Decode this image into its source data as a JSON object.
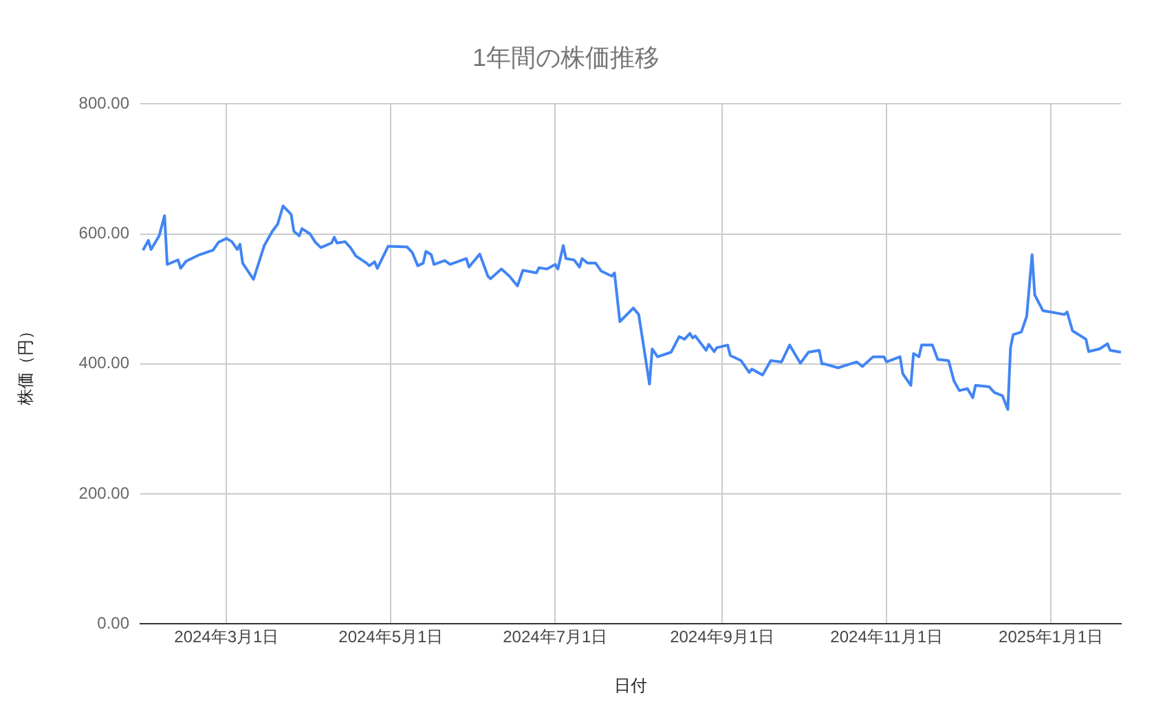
{
  "chart_data": {
    "type": "line",
    "title": "1年間の株価推移",
    "xlabel": "日付",
    "ylabel": "株価（円）",
    "x": [
      "2024-01-30",
      "2024-02-01",
      "2024-02-02",
      "2024-02-05",
      "2024-02-07",
      "2024-02-08",
      "2024-02-12",
      "2024-02-13",
      "2024-02-15",
      "2024-02-20",
      "2024-02-25",
      "2024-02-27",
      "2024-03-01",
      "2024-03-03",
      "2024-03-05",
      "2024-03-06",
      "2024-03-07",
      "2024-03-11",
      "2024-03-15",
      "2024-03-18",
      "2024-03-20",
      "2024-03-22",
      "2024-03-25",
      "2024-03-26",
      "2024-03-28",
      "2024-03-29",
      "2024-04-01",
      "2024-04-03",
      "2024-04-05",
      "2024-04-09",
      "2024-04-10",
      "2024-04-11",
      "2024-04-14",
      "2024-04-16",
      "2024-04-18",
      "2024-04-22",
      "2024-04-23",
      "2024-04-25",
      "2024-04-26",
      "2024-04-30",
      "2024-05-07",
      "2024-05-09",
      "2024-05-11",
      "2024-05-13",
      "2024-05-14",
      "2024-05-16",
      "2024-05-17",
      "2024-05-21",
      "2024-05-23",
      "2024-05-29",
      "2024-05-30",
      "2024-06-03",
      "2024-06-06",
      "2024-06-07",
      "2024-06-11",
      "2024-06-14",
      "2024-06-17",
      "2024-06-19",
      "2024-06-24",
      "2024-06-25",
      "2024-06-28",
      "2024-07-01",
      "2024-07-02",
      "2024-07-04",
      "2024-07-05",
      "2024-07-08",
      "2024-07-10",
      "2024-07-11",
      "2024-07-13",
      "2024-07-16",
      "2024-07-18",
      "2024-07-22",
      "2024-07-23",
      "2024-07-25",
      "2024-07-30",
      "2024-08-01",
      "2024-08-05",
      "2024-08-06",
      "2024-08-08",
      "2024-08-13",
      "2024-08-16",
      "2024-08-18",
      "2024-08-20",
      "2024-08-21",
      "2024-08-22",
      "2024-08-26",
      "2024-08-27",
      "2024-08-29",
      "2024-08-30",
      "2024-09-03",
      "2024-09-04",
      "2024-09-08",
      "2024-09-11",
      "2024-09-12",
      "2024-09-16",
      "2024-09-19",
      "2024-09-23",
      "2024-09-26",
      "2024-09-30",
      "2024-10-03",
      "2024-10-07",
      "2024-10-08",
      "2024-10-09",
      "2024-10-14",
      "2024-10-17",
      "2024-10-21",
      "2024-10-23",
      "2024-10-27",
      "2024-10-31",
      "2024-11-01",
      "2024-11-06",
      "2024-11-07",
      "2024-11-10",
      "2024-11-11",
      "2024-11-13",
      "2024-11-14",
      "2024-11-18",
      "2024-11-20",
      "2024-11-24",
      "2024-11-26",
      "2024-11-28",
      "2024-12-01",
      "2024-12-03",
      "2024-12-04",
      "2024-12-09",
      "2024-12-11",
      "2024-12-14",
      "2024-12-16",
      "2024-12-17",
      "2024-12-18",
      "2024-12-21",
      "2024-12-23",
      "2024-12-25",
      "2024-12-26",
      "2024-12-29",
      "2025-01-06",
      "2025-01-07",
      "2025-01-09",
      "2025-01-14",
      "2025-01-15",
      "2025-01-19",
      "2025-01-22",
      "2025-01-23",
      "2025-01-27"
    ],
    "series": [
      {
        "color": "#4285f4",
        "values": [
          575,
          590,
          576,
          597,
          628,
          553,
          560,
          547,
          558,
          568,
          575,
          587,
          593,
          588,
          576,
          584,
          555,
          530,
          582,
          604,
          615,
          643,
          630,
          604,
          597,
          608,
          600,
          587,
          579,
          586,
          595,
          586,
          588,
          579,
          566,
          555,
          551,
          557,
          547,
          581,
          580,
          571,
          551,
          555,
          573,
          568,
          553,
          559,
          553,
          562,
          549,
          569,
          535,
          531,
          546,
          535,
          520,
          544,
          540,
          548,
          546,
          553,
          546,
          582,
          562,
          560,
          549,
          562,
          555,
          555,
          543,
          535,
          540,
          465,
          486,
          476,
          369,
          423,
          411,
          418,
          442,
          438,
          447,
          440,
          443,
          421,
          430,
          419,
          425,
          429,
          413,
          405,
          387,
          392,
          383,
          405,
          403,
          429,
          401,
          418,
          421,
          400,
          400,
          394,
          398,
          403,
          396,
          411,
          411,
          403,
          411,
          385,
          367,
          416,
          411,
          429,
          429,
          407,
          405,
          374,
          359,
          362,
          348,
          367,
          365,
          356,
          351,
          330,
          425,
          445,
          449,
          473,
          568,
          506,
          482,
          476,
          480,
          451,
          438,
          419,
          423,
          431,
          421,
          418
        ]
      }
    ],
    "xlim": [
      "2024-01-29",
      "2025-01-27"
    ],
    "xticks": [
      {
        "value": "2024-03-01",
        "label": "2024年3月1日"
      },
      {
        "value": "2024-05-01",
        "label": "2024年5月1日"
      },
      {
        "value": "2024-07-01",
        "label": "2024年7月1日"
      },
      {
        "value": "2024-09-01",
        "label": "2024年9月1日"
      },
      {
        "value": "2024-11-01",
        "label": "2024年11月1日"
      },
      {
        "value": "2025-01-01",
        "label": "2025年1月1日"
      }
    ],
    "ylim": [
      0,
      800
    ],
    "yticks": [
      {
        "value": 0,
        "label": "0.00"
      },
      {
        "value": 200,
        "label": "200.00"
      },
      {
        "value": 400,
        "label": "400.00"
      },
      {
        "value": 600,
        "label": "600.00"
      },
      {
        "value": 800,
        "label": "800.00"
      }
    ],
    "grid": true,
    "legend": false,
    "marker": "none",
    "line_style": "solid"
  }
}
